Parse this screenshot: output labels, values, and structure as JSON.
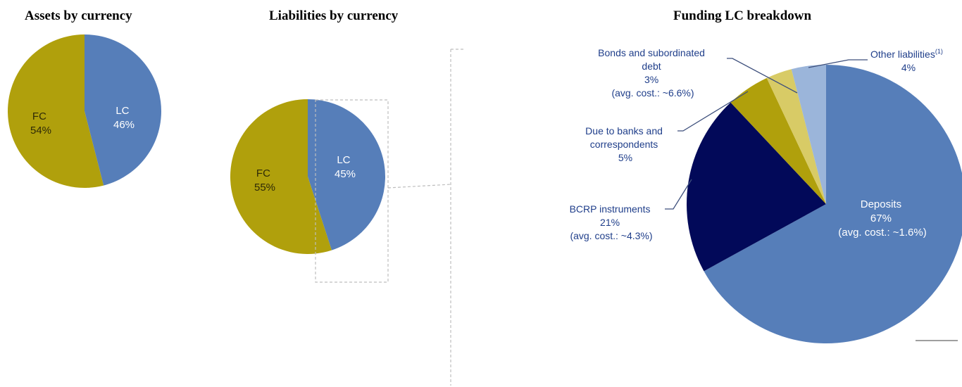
{
  "charts": {
    "assets": {
      "title": "Assets by currency"
    },
    "liabilities": {
      "title": "Liabilities by currency"
    },
    "funding": {
      "title": "Funding LC breakdown"
    }
  },
  "colors": {
    "lc_blue": "#567eb9",
    "fc_gold": "#b0a00c",
    "navy": "#020959",
    "bonds_gold_light": "#d8cb66",
    "other_blue_light": "#9bb5da",
    "label_blue": "#1f3e8a",
    "guide_gray": "#bdbdbd"
  },
  "chart_data": [
    {
      "type": "pie",
      "title": "Assets by currency",
      "slices": [
        {
          "label": "LC",
          "pct_label": "46%",
          "value": 46,
          "color": "#567eb9"
        },
        {
          "label": "FC",
          "pct_label": "54%",
          "value": 54,
          "color": "#b0a00c"
        }
      ]
    },
    {
      "type": "pie",
      "title": "Liabilities by currency",
      "slices": [
        {
          "label": "LC",
          "pct_label": "45%",
          "value": 45,
          "color": "#567eb9"
        },
        {
          "label": "FC",
          "pct_label": "55%",
          "value": 55,
          "color": "#b0a00c"
        }
      ]
    },
    {
      "type": "pie",
      "title": "Funding LC breakdown",
      "slices": [
        {
          "label": "Deposits",
          "pct_label": "67%",
          "note": "(avg. cost.: ~1.6%)",
          "value": 67,
          "color": "#567eb9"
        },
        {
          "label": "BCRP instruments",
          "pct_label": "21%",
          "note": "(avg. cost.: ~4.3%)",
          "value": 21,
          "color": "#020959"
        },
        {
          "label": "Due to banks and correspondents",
          "pct_label": "5%",
          "note": "",
          "value": 5,
          "color": "#b0a00c"
        },
        {
          "label": "Bonds and subordinated debt",
          "pct_label": "3%",
          "note": "(avg. cost.: ~6.6%)",
          "value": 3,
          "color": "#d8cb66"
        },
        {
          "label": "Other liabilities",
          "footnote": "(1)",
          "pct_label": "4%",
          "note": "",
          "value": 4,
          "color": "#9bb5da"
        }
      ]
    }
  ],
  "labels": {
    "assets_lc": [
      "LC",
      "46%"
    ],
    "assets_fc": [
      "FC",
      "54%"
    ],
    "liab_lc": [
      "LC",
      "45%"
    ],
    "liab_fc": [
      "FC",
      "55%"
    ],
    "deposits": [
      "Deposits",
      "67%",
      "(avg. cost.: ~1.6%)"
    ],
    "bcrp": [
      "BCRP instruments",
      "21%",
      "(avg. cost.: ~4.3%)"
    ],
    "banks": [
      "Due to banks and",
      "correspondents",
      "5%"
    ],
    "bonds": [
      "Bonds and subordinated",
      "debt",
      "3%",
      "(avg. cost.: ~6.6%)"
    ],
    "other_name": "Other liabilities",
    "other_footnote": "(1)",
    "other_pct": "4%"
  }
}
